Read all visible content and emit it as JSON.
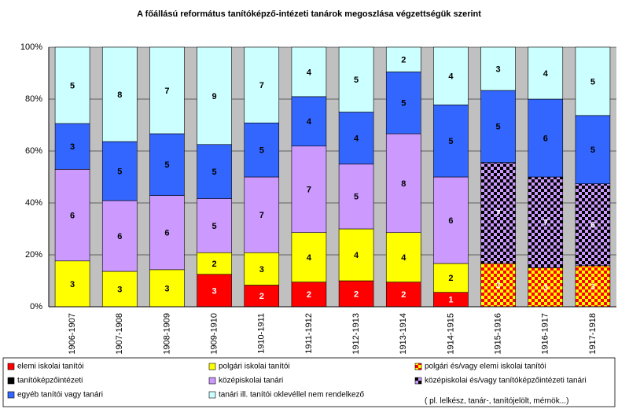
{
  "chart_data": {
    "type": "stacked-percent-bar",
    "title": "A főállású református tanítóképző-intézeti tanárok megoszlása végzettségük szerint",
    "categories": [
      "1906-1907",
      "1907-1908",
      "1908-1909",
      "1909-1910",
      "1910-1911",
      "1911-1912",
      "1912-1913",
      "1913-1914",
      "1914-1915",
      "1915-1916",
      "1916-1917",
      "1917-1918"
    ],
    "series": [
      {
        "name": "elemi iskolai tanítói",
        "color": "#ff0000",
        "values": [
          null,
          null,
          null,
          3,
          2,
          2,
          2,
          2,
          1,
          null,
          null,
          null
        ]
      },
      {
        "name": "polgári iskolai tanítói",
        "color": "#ffff00",
        "values": [
          3,
          3,
          3,
          2,
          3,
          4,
          4,
          4,
          2,
          null,
          null,
          null
        ]
      },
      {
        "name": "polgári és/vagy elemi iskolai tanítói",
        "color": "#ff0000",
        "color2": "#ffff00",
        "values": [
          null,
          null,
          null,
          null,
          null,
          null,
          null,
          null,
          null,
          3,
          3,
          3
        ]
      },
      {
        "name": "tanítóképzőintézeti",
        "color": "#000000",
        "values": [
          null,
          null,
          null,
          null,
          null,
          null,
          null,
          null,
          null,
          null,
          null,
          null
        ]
      },
      {
        "name": "középiskolai tanári",
        "color": "#cc99ff",
        "values": [
          6,
          6,
          6,
          5,
          7,
          7,
          5,
          8,
          6,
          null,
          null,
          null
        ]
      },
      {
        "name": "középiskolai és/vagy tanítóképzőintézeti tanári",
        "color": "#000000",
        "color2": "#cc99ff",
        "values": [
          null,
          null,
          null,
          null,
          null,
          null,
          null,
          null,
          null,
          7,
          7,
          6
        ]
      },
      {
        "name": "egyéb tanítói vagy tanári",
        "color": "#3366ff",
        "values": [
          3,
          5,
          5,
          5,
          5,
          4,
          4,
          5,
          5,
          5,
          6,
          5
        ]
      },
      {
        "name": "tanári ill. tanítói oklevéllel nem rendelkező",
        "color": "#ccffff",
        "values": [
          5,
          8,
          7,
          9,
          7,
          4,
          5,
          2,
          4,
          3,
          4,
          5
        ]
      }
    ],
    "legend_note": "( pl. lelkész, tanár-, tanítójelölt, mérnök...)",
    "ylim": [
      0,
      100
    ],
    "yticks": [
      {
        "value": 0,
        "label": "0%"
      },
      {
        "value": 20,
        "label": "20%"
      },
      {
        "value": 40,
        "label": "40%"
      },
      {
        "value": 60,
        "label": "60%"
      },
      {
        "value": 80,
        "label": "80%"
      },
      {
        "value": 100,
        "label": "100%"
      }
    ],
    "grid": true
  }
}
